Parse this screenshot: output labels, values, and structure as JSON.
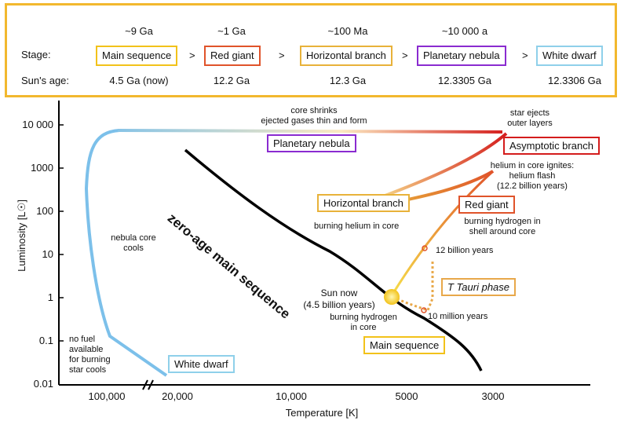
{
  "top_panel": {
    "row_labels": {
      "stage": "Stage:",
      "age": "Sun's age:"
    },
    "stages": [
      {
        "duration": "~9 Ga",
        "name": "Main sequence",
        "age": "4.5 Ga (now)",
        "color": "#f2c21a"
      },
      {
        "duration": "~1 Ga",
        "name": "Red giant",
        "age": "12.2 Ga",
        "color": "#e0532a"
      },
      {
        "duration": "~100 Ma",
        "name": "Horizontal branch",
        "age": "12.3 Ga",
        "color": "#e8b23a"
      },
      {
        "duration": "~10 000 a",
        "name": "Planetary nebula",
        "age": "12.3305 Ga",
        "color": "#8a2bd0"
      },
      {
        "duration": "",
        "name": "White dwarf",
        "age": "12.3306 Ga",
        "color": "#8fd0ea"
      }
    ],
    "arrow": ">"
  },
  "plot": {
    "y_label": "Luminosity [L☉]",
    "x_label": "Temperature [K]",
    "y_ticks": [
      "10 000",
      "1000",
      "100",
      "10",
      "1",
      "0.1",
      "0.01"
    ],
    "x_ticks": [
      "100,000",
      "20,000",
      "10,000",
      "5000",
      "3000"
    ],
    "zams_label": "zero-age main sequence",
    "boxes": {
      "planetary_nebula": "Planetary nebula",
      "asymptotic_branch": "Asymptotic branch",
      "horizontal_branch": "Horizontal branch",
      "red_giant": "Red giant",
      "t_tauri": "T Tauri phase",
      "main_sequence": "Main sequence",
      "white_dwarf": "White dwarf"
    },
    "annotations": {
      "core_shrinks": "core shrinks\nejected gases thin and form",
      "star_ejects": "star ejects\nouter layers",
      "helium_flash": "helium in core ignites:\nhelium flash\n(12.2 billion years)",
      "burning_helium": "burning helium in core",
      "burning_hydrogen_shell": "burning hydrogen in\nshell around core",
      "twelve_billion": "12 billion years",
      "sun_now": "Sun now\n(4.5 billion years)",
      "burning_hydrogen_core": "burning hydrogen\nin core",
      "ten_million": "10 million years",
      "nebula_core_cools": "nebula core\ncools",
      "no_fuel": "no fuel\navailable\nfor burning\nstar cools"
    },
    "colors": {
      "main_sequence": "#f2c21a",
      "red_giant": "#e0532a",
      "horizontal_branch": "#e8b23a",
      "planetary_nebula": "#8a2bd0",
      "white_dwarf": "#8fd0ea",
      "asymptotic_branch": "#d41c1c",
      "t_tauri": "#e8a84a",
      "track_blue": "#7cc0ea"
    }
  }
}
